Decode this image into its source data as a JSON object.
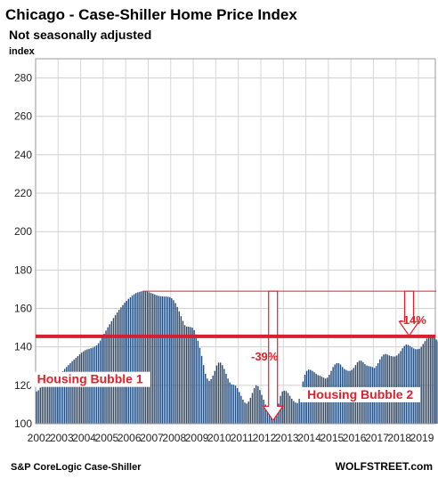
{
  "chart_data": {
    "type": "bar",
    "title": "Chicago - Case-Shiller Home Price Index",
    "subtitle": "Not seasonally adjusted",
    "ylabel": "index",
    "source": "S&P CoreLogic Case-Shiller",
    "brand": "WOLFSTREET.com",
    "ylim": [
      100,
      290
    ],
    "yticks": [
      100,
      120,
      140,
      160,
      180,
      200,
      220,
      240,
      260,
      280
    ],
    "xticks": [
      "2002",
      "2003",
      "2004",
      "2005",
      "2006",
      "2007",
      "2008",
      "2009",
      "2010",
      "2011",
      "2012",
      "2013",
      "2014",
      "2015",
      "2016",
      "2017",
      "2018",
      "2019"
    ],
    "x_start": "2002-01",
    "x_end": "2019-09",
    "grid": true,
    "bar_color": "#244a78",
    "reference_level": 145.5,
    "reference_color": "#d42030",
    "annotation_color": "#e0202c",
    "annotations": [
      {
        "text": "Housing Bubble 1",
        "x": "2004-06",
        "y": 121
      },
      {
        "text": "Housing Bubble 2",
        "x": "2016-06",
        "y": 113
      },
      {
        "text": "-39%",
        "x": "2012-03",
        "y": 133
      },
      {
        "text": "-14%",
        "x": "2018-10",
        "y": 152
      }
    ],
    "series": [
      {
        "values": [
          116.8,
          117.4,
          118.8,
          120.4,
          121.7,
          122.9,
          123.3,
          124.0,
          123.9,
          124.0,
          123.9,
          124.7,
          125.6,
          126.4,
          127.4,
          128.5,
          129.5,
          130.5,
          131.5,
          132.5,
          133.4,
          134.3,
          135.2,
          136.1,
          137.0,
          137.7,
          138.3,
          138.7,
          139.0,
          139.3,
          139.6,
          140.1,
          140.8,
          141.9,
          143.3,
          145.0,
          146.8,
          148.5,
          150.2,
          151.8,
          153.4,
          155.0,
          156.5,
          157.9,
          159.3,
          160.6,
          161.8,
          163.0,
          164.0,
          165.0,
          165.8,
          166.7,
          167.4,
          168.0,
          168.4,
          168.7,
          168.9,
          169.0,
          169.0,
          168.8,
          168.4,
          168.0,
          167.7,
          167.3,
          166.9,
          166.6,
          166.4,
          166.3,
          166.2,
          166.2,
          166.1,
          165.9,
          165.3,
          164.3,
          162.8,
          160.8,
          158.5,
          156.0,
          153.5,
          151.3,
          150.6,
          150.5,
          150.3,
          150.0,
          148.7,
          146.5,
          143.2,
          139.5,
          135.3,
          130.5,
          126.0,
          123.5,
          122.3,
          123.2,
          125.0,
          127.5,
          130.3,
          131.8,
          131.8,
          130.5,
          128.5,
          126.0,
          123.5,
          121.5,
          120.5,
          120.3,
          119.8,
          118.5,
          116.5,
          114.5,
          112.5,
          111.0,
          110.5,
          111.5,
          113.5,
          116.0,
          118.5,
          120.0,
          119.5,
          117.5,
          115.0,
          112.5,
          110.0,
          108.0,
          106.0,
          104.5,
          103.5,
          104.8,
          107.5,
          110.5,
          114.5,
          116.8,
          117.2,
          117.0,
          116.0,
          114.5,
          113.0,
          111.8,
          111.0,
          110.8,
          113.0,
          117.5,
          122.0,
          125.5,
          127.5,
          128.2,
          128.0,
          127.5,
          126.8,
          126.0,
          125.3,
          125.0,
          124.5,
          124.0,
          123.5,
          124.0,
          125.5,
          127.5,
          129.5,
          130.8,
          131.5,
          131.5,
          130.8,
          129.5,
          128.5,
          128.0,
          127.5,
          127.5,
          128.0,
          129.0,
          130.5,
          132.0,
          132.8,
          132.8,
          132.0,
          131.0,
          130.3,
          130.0,
          129.8,
          129.5,
          129.0,
          130.0,
          131.5,
          133.5,
          135.0,
          136.0,
          136.3,
          136.0,
          135.5,
          135.2,
          135.0,
          135.0,
          135.5,
          136.5,
          137.8,
          139.3,
          140.5,
          141.2,
          141.0,
          140.5,
          139.8,
          139.2,
          138.8,
          138.8,
          139.0,
          140.0,
          141.5,
          143.0,
          144.3,
          145.0,
          145.2,
          145.0,
          144.5,
          143.8,
          143.0,
          142.3,
          142.0,
          142.5,
          143.5,
          145.0,
          146.2,
          146.8,
          147.0,
          146.5,
          146.0
        ]
      }
    ]
  }
}
